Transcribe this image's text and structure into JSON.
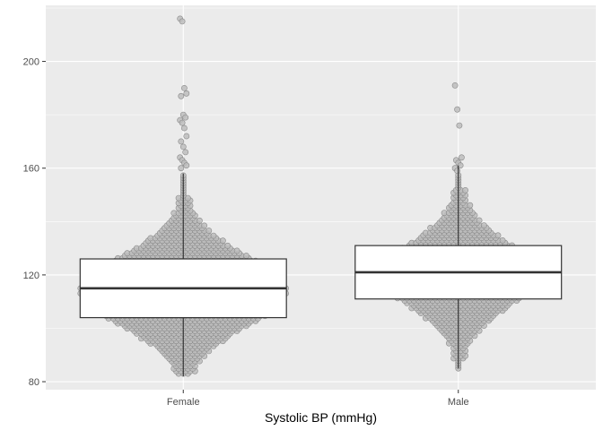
{
  "chart_data": {
    "type": "box-beeswarm",
    "title": "",
    "xlabel": "Systolic BP (mmHg)",
    "ylabel": "",
    "ylim": [
      77,
      221
    ],
    "yticks": [
      80,
      120,
      160,
      200
    ],
    "ytick_labels": [
      "80",
      "120",
      "160",
      "200"
    ],
    "categories": [
      "Female",
      "Male"
    ],
    "grid": true,
    "colors": {
      "panel": "#ebebeb",
      "grid": "#ffffff",
      "point_fill": "#bdbdbd",
      "point_stroke": "#8a8a8a",
      "box_fill": "#ffffff",
      "box_stroke": "#333333"
    },
    "boxes": [
      {
        "category": "Female",
        "min": 82,
        "q1": 104,
        "median": 115,
        "q3": 126,
        "max": 158
      },
      {
        "category": "Male",
        "min": 85,
        "q1": 111,
        "median": 121,
        "q3": 131,
        "max": 161
      }
    ],
    "points": [
      {
        "category": "Female",
        "dense_min": 83,
        "dense_max": 158,
        "center": 114,
        "spread": 13,
        "max_halfwidth": 0.37,
        "outliers": [
          216,
          215,
          190,
          188,
          187,
          180,
          179,
          178,
          177,
          175,
          172,
          170,
          168,
          166,
          164,
          163,
          162,
          161,
          160
        ]
      },
      {
        "category": "Male",
        "dense_min": 85,
        "dense_max": 158,
        "center": 120,
        "spread": 12,
        "max_halfwidth": 0.28,
        "outliers": [
          191,
          182,
          176,
          164,
          163,
          162,
          161,
          160,
          159
        ]
      }
    ]
  }
}
